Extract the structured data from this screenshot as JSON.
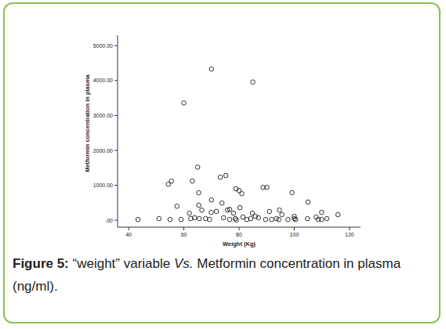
{
  "chart_data": {
    "type": "scatter",
    "x_label": "Weight (Kg)",
    "y_label": "Metformin concentration in plasma",
    "marker": "circle",
    "color": "#000000",
    "xlim": [
      36,
      124
    ],
    "ylim": [
      -200,
      5300
    ],
    "xticks": [
      40,
      60,
      80,
      100,
      120
    ],
    "yticks": [
      {
        "value": 0,
        "label": ".00"
      },
      {
        "value": 1000,
        "label": "1000.00"
      },
      {
        "value": 2000,
        "label": "2000.00"
      },
      {
        "value": 3000,
        "label": "3000.00"
      },
      {
        "value": 4000,
        "label": "4000.00"
      },
      {
        "value": 5000,
        "label": "5000.00"
      }
    ],
    "grid": false,
    "x": [
      70,
      85,
      60,
      65,
      55.5,
      54.4,
      75.2,
      73.2,
      63.1,
      65.4,
      80,
      78.9,
      81,
      88.7,
      90.1,
      99.2,
      105,
      57.5,
      70,
      73.8,
      75.8,
      76.6,
      80.3,
      65.4,
      66.5,
      62,
      69.9,
      71.8,
      78,
      84.8,
      91,
      94.6,
      95.5,
      100,
      100,
      109.9,
      115.8,
      107.9,
      43.4,
      51,
      55,
      59,
      62.5,
      63.9,
      65.6,
      67.9,
      69.3,
      74.4,
      76.6,
      78.6,
      81.4,
      82.8,
      84.2,
      85.9,
      87,
      89.6,
      91.8,
      93.5,
      94.4,
      97.7,
      100.5,
      104.8,
      108.7,
      109.9,
      111.8,
      79
    ],
    "values": [
      4330,
      3960,
      3360,
      1520,
      1120,
      1030,
      1280,
      1230,
      1120,
      785,
      850,
      900,
      760,
      940,
      940,
      790,
      520,
      400,
      580,
      490,
      290,
      310,
      360,
      430,
      290,
      200,
      225,
      250,
      200,
      200,
      250,
      290,
      160,
      110,
      45,
      225,
      160,
      90,
      20,
      45,
      20,
      20,
      45,
      70,
      45,
      45,
      20,
      70,
      20,
      45,
      90,
      20,
      45,
      110,
      70,
      20,
      20,
      45,
      20,
      20,
      20,
      45,
      20,
      20,
      45,
      5
    ]
  },
  "caption": {
    "label": "Figure 5:",
    "text": " “weight” variable ",
    "emphasis": "Vs.",
    "text_end": " Metformin concentration in plasma (ng/ml)."
  }
}
